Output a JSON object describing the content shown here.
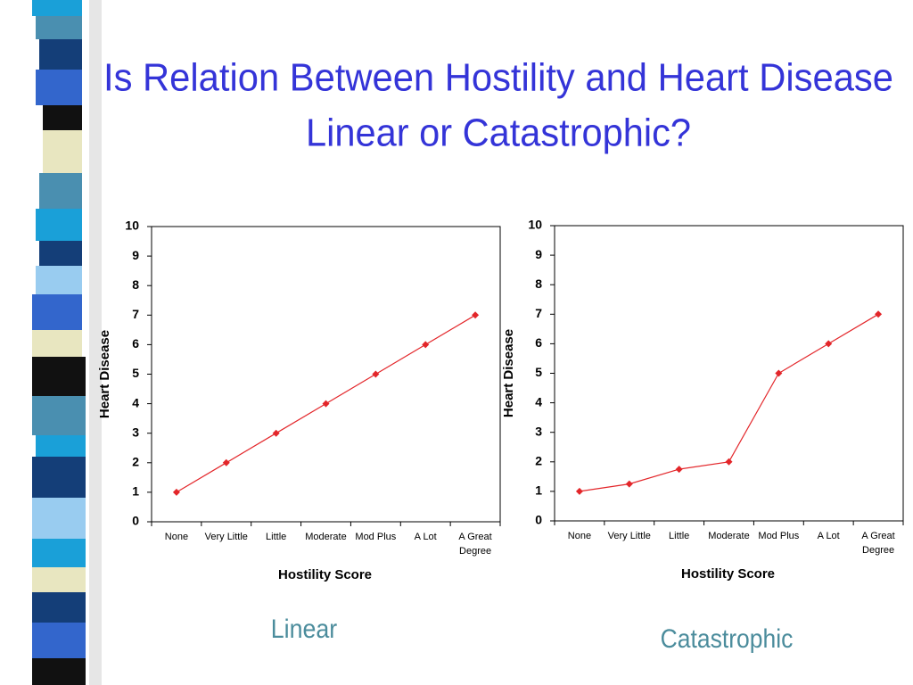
{
  "title": [
    "Is Relation Between Hostility and Heart Disease",
    "Linear or Catastrophic?"
  ],
  "chart_data": [
    {
      "type": "line",
      "caption": "Linear",
      "x_label": "Hostility Score",
      "y_label": "Heart Disease",
      "categories": [
        "None",
        "Very Little",
        "Little",
        "Moderate",
        "Mod Plus",
        "A Lot",
        "A Great Degree"
      ],
      "series": [
        {
          "name": "Heart Disease",
          "color": "#e3262a",
          "values": [
            1,
            2,
            3,
            4,
            5,
            6,
            7
          ]
        }
      ],
      "ylim": [
        0,
        10
      ],
      "yticks": [
        0,
        1,
        2,
        3,
        4,
        5,
        6,
        7,
        8,
        9,
        10
      ],
      "grid": false
    },
    {
      "type": "line",
      "caption": "Catastrophic",
      "x_label": "Hostility Score",
      "y_label": "Heart Disease",
      "categories": [
        "None",
        "Very Little",
        "Little",
        "Moderate",
        "Mod Plus",
        "A Lot",
        "A Great Degree"
      ],
      "series": [
        {
          "name": "Heart Disease",
          "color": "#e3262a",
          "values": [
            1,
            1.25,
            1.75,
            2,
            5,
            6,
            7
          ]
        }
      ],
      "ylim": [
        0,
        10
      ],
      "yticks": [
        0,
        1,
        2,
        3,
        4,
        5,
        6,
        7,
        8,
        9,
        10
      ],
      "grid": false
    }
  ]
}
